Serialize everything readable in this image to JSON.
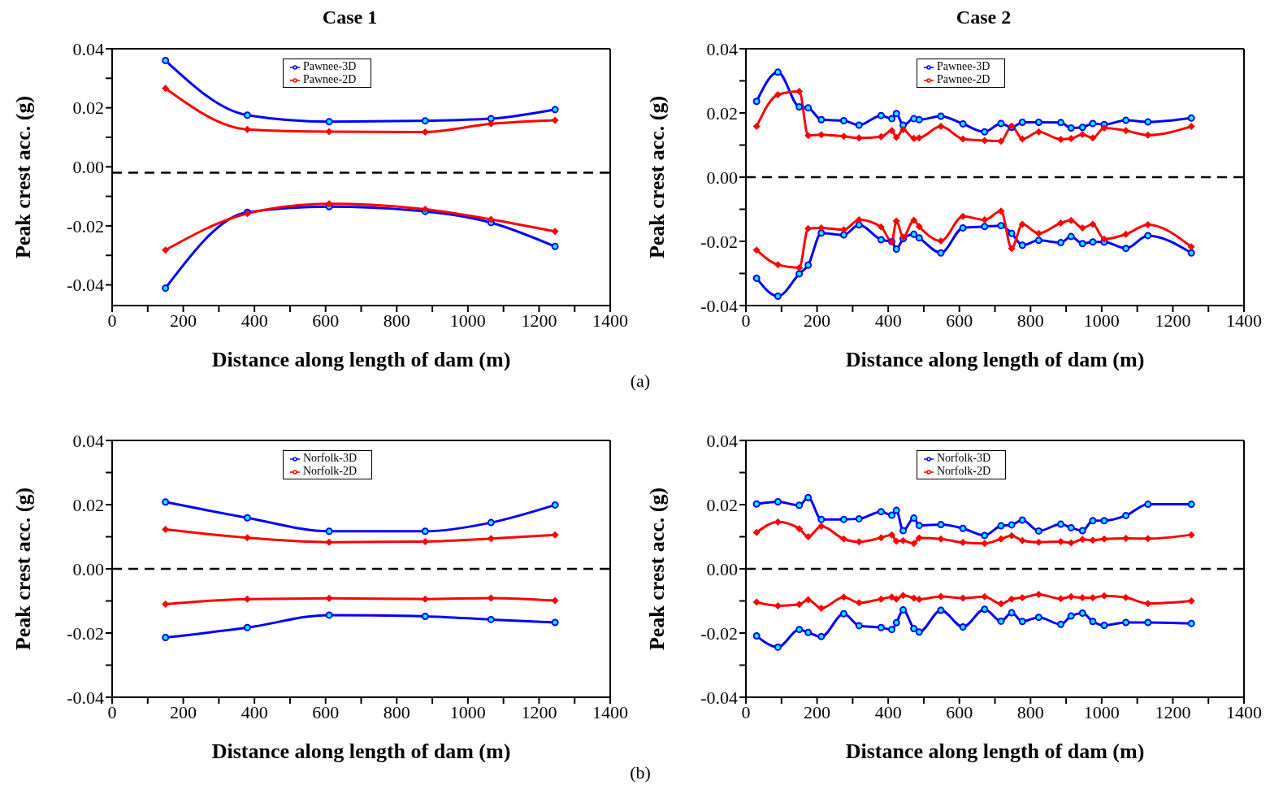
{
  "chart_data": [
    {
      "type": "line",
      "title": "Case 1",
      "xlabel": "Distance along length of dam (m)",
      "ylabel": "Peak crest acc. (g)",
      "annotations": [
        "(a)"
      ],
      "legend": "top",
      "line_style": "solid",
      "xlim": [
        0,
        1400
      ],
      "ylim": [
        -0.047,
        0.04
      ],
      "xticks": [
        0,
        {
          "value": 100,
          "label": null
        },
        200,
        {
          "value": 300,
          "label": null
        },
        400,
        {
          "value": 500,
          "label": null
        },
        600,
        {
          "value": 700,
          "label": null
        },
        800,
        {
          "value": 900,
          "label": null
        },
        1000,
        {
          "value": 1100,
          "label": null
        },
        1200,
        {
          "value": 1300,
          "label": null
        },
        1400
      ],
      "yticks": [
        {
          "value": -0.04,
          "label": "-0.04"
        },
        {
          "value": -0.03,
          "label": null
        },
        {
          "value": -0.02,
          "label": "-0.02"
        },
        {
          "value": -0.01,
          "label": null
        },
        {
          "value": 0,
          "label": "0.00"
        },
        {
          "value": 0.01,
          "label": null
        },
        {
          "value": 0.02,
          "label": "0.02"
        },
        {
          "value": 0.03,
          "label": null
        },
        {
          "value": 0.04,
          "label": "0.04"
        }
      ],
      "ref_lines": [
        {
          "axis": "y",
          "value": -0.002,
          "color": "#000000",
          "line_style": "dashed"
        }
      ],
      "x": [
        150,
        380,
        610,
        880,
        1065,
        1245
      ],
      "series": [
        {
          "name": "Pawnee-3D",
          "color": "#0000ff",
          "marker": "circle",
          "values": [
            0.036,
            0.0175,
            0.0153,
            0.0156,
            0.0163,
            0.0194
          ]
        },
        {
          "name": "Pawnee-2D",
          "color": "#ff0000",
          "marker": "diamond",
          "values": [
            0.0266,
            0.0127,
            0.0119,
            0.0118,
            0.0146,
            0.0158
          ]
        },
        {
          "color": "#0000ff",
          "marker": "circle",
          "values": [
            -0.0411,
            -0.0154,
            -0.0135,
            -0.0151,
            -0.0189,
            -0.027
          ]
        },
        {
          "color": "#ff0000",
          "marker": "diamond",
          "values": [
            -0.0282,
            -0.0158,
            -0.0125,
            -0.0144,
            -0.0178,
            -0.0219
          ]
        }
      ]
    },
    {
      "type": "line",
      "title": "Case 2",
      "xlabel": "Distance along length of dam (m)",
      "ylabel": "Peak crest acc. (g)",
      "legend": "top",
      "line_style": "solid",
      "xlim": [
        0,
        1400
      ],
      "ylim": [
        -0.04,
        0.04
      ],
      "xticks": [
        0,
        {
          "value": 100,
          "label": null
        },
        200,
        {
          "value": 300,
          "label": null
        },
        400,
        {
          "value": 500,
          "label": null
        },
        600,
        {
          "value": 700,
          "label": null
        },
        800,
        {
          "value": 900,
          "label": null
        },
        1000,
        {
          "value": 1100,
          "label": null
        },
        1200,
        {
          "value": 1300,
          "label": null
        },
        1400
      ],
      "yticks": [
        {
          "value": -0.04,
          "label": "-0.04"
        },
        {
          "value": -0.03,
          "label": null
        },
        {
          "value": -0.02,
          "label": "-0.02"
        },
        {
          "value": -0.01,
          "label": null
        },
        {
          "value": 0,
          "label": "0.00"
        },
        {
          "value": 0.01,
          "label": null
        },
        {
          "value": 0.02,
          "label": "0.02"
        },
        {
          "value": 0.03,
          "label": null
        },
        {
          "value": 0.04,
          "label": "0.04"
        }
      ],
      "ref_lines": [
        {
          "axis": "y",
          "value": 0,
          "color": "#000000",
          "line_style": "dashed"
        }
      ],
      "x": [
        30,
        90,
        150,
        175,
        212,
        275,
        318,
        380,
        410,
        423,
        442,
        472,
        487,
        548,
        610,
        671,
        717,
        747,
        777,
        823,
        885,
        914,
        946,
        975,
        1007,
        1068,
        1130,
        1252
      ],
      "series": [
        {
          "name": "Pawnee-3D",
          "color": "#0000ff",
          "marker": "circle",
          "values": [
            0.0236,
            0.0327,
            0.0219,
            0.0216,
            0.0179,
            0.0176,
            0.0162,
            0.0192,
            0.0182,
            0.0198,
            0.0162,
            0.0182,
            0.0179,
            0.019,
            0.0166,
            0.0141,
            0.0167,
            0.0155,
            0.0171,
            0.0171,
            0.017,
            0.0153,
            0.0155,
            0.0167,
            0.0164,
            0.0177,
            0.0172,
            0.0184
          ]
        },
        {
          "name": "Pawnee-2D",
          "color": "#ff0000",
          "marker": "diamond",
          "values": [
            0.0158,
            0.0257,
            0.0267,
            0.013,
            0.0132,
            0.0127,
            0.0122,
            0.0126,
            0.0145,
            0.0124,
            0.0148,
            0.0121,
            0.0122,
            0.0158,
            0.0119,
            0.0114,
            0.0112,
            0.0159,
            0.0119,
            0.0141,
            0.0118,
            0.012,
            0.0133,
            0.0122,
            0.0153,
            0.0145,
            0.0131,
            0.0158
          ]
        },
        {
          "color": "#0000ff",
          "marker": "circle",
          "values": [
            -0.0315,
            -0.0371,
            -0.0301,
            -0.0274,
            -0.0174,
            -0.018,
            -0.0149,
            -0.0195,
            -0.0201,
            -0.0224,
            -0.0192,
            -0.0178,
            -0.0189,
            -0.0236,
            -0.0158,
            -0.0154,
            -0.0151,
            -0.0175,
            -0.0212,
            -0.0197,
            -0.0204,
            -0.0185,
            -0.0207,
            -0.0202,
            -0.0202,
            -0.0222,
            -0.0182,
            -0.0236
          ]
        },
        {
          "color": "#ff0000",
          "marker": "diamond",
          "values": [
            -0.0227,
            -0.0273,
            -0.0282,
            -0.016,
            -0.0158,
            -0.0164,
            -0.0133,
            -0.0155,
            -0.0201,
            -0.0137,
            -0.0187,
            -0.0134,
            -0.0154,
            -0.0199,
            -0.0122,
            -0.0133,
            -0.0106,
            -0.0222,
            -0.0147,
            -0.0175,
            -0.0143,
            -0.0135,
            -0.0158,
            -0.0147,
            -0.0193,
            -0.0178,
            -0.0148,
            -0.0217
          ]
        }
      ]
    },
    {
      "type": "line",
      "xlabel": "Distance along length of dam (m)",
      "ylabel": "Peak crest acc. (g)",
      "annotations": [
        "(b)"
      ],
      "legend": "top",
      "line_style": "solid",
      "xlim": [
        0,
        1400
      ],
      "ylim": [
        -0.04,
        0.04
      ],
      "xticks": [
        0,
        {
          "value": 100,
          "label": null
        },
        200,
        {
          "value": 300,
          "label": null
        },
        400,
        {
          "value": 500,
          "label": null
        },
        600,
        {
          "value": 700,
          "label": null
        },
        800,
        {
          "value": 900,
          "label": null
        },
        1000,
        {
          "value": 1100,
          "label": null
        },
        1200,
        {
          "value": 1300,
          "label": null
        },
        1400
      ],
      "yticks": [
        {
          "value": -0.04,
          "label": "-0.04"
        },
        {
          "value": -0.03,
          "label": null
        },
        {
          "value": -0.02,
          "label": "-0.02"
        },
        {
          "value": -0.01,
          "label": null
        },
        {
          "value": 0,
          "label": "0.00"
        },
        {
          "value": 0.01,
          "label": null
        },
        {
          "value": 0.02,
          "label": "0.02"
        },
        {
          "value": 0.03,
          "label": null
        },
        {
          "value": 0.04,
          "label": "0.04"
        }
      ],
      "ref_lines": [
        {
          "axis": "y",
          "value": 0,
          "color": "#000000",
          "line_style": "dashed"
        }
      ],
      "x": [
        150,
        380,
        610,
        880,
        1065,
        1245
      ],
      "series": [
        {
          "name": "Norfolk-3D",
          "color": "#0000ff",
          "marker": "circle",
          "values": [
            0.0208,
            0.0159,
            0.0117,
            0.0117,
            0.0144,
            0.0199
          ]
        },
        {
          "name": "Norfolk-2D",
          "color": "#ff0000",
          "marker": "diamond",
          "values": [
            0.0123,
            0.0097,
            0.0083,
            0.0085,
            0.0094,
            0.0106
          ]
        },
        {
          "color": "#ff0000",
          "marker": "diamond",
          "values": [
            -0.011,
            -0.0094,
            -0.0092,
            -0.0094,
            -0.0091,
            -0.0099
          ]
        },
        {
          "color": "#0000ff",
          "marker": "circle",
          "values": [
            -0.0214,
            -0.0183,
            -0.0144,
            -0.0148,
            -0.0158,
            -0.0167
          ]
        }
      ]
    },
    {
      "type": "line",
      "xlabel": "Distance along length of dam (m)",
      "ylabel": "Peak crest acc. (g)",
      "legend": "top",
      "line_style": "solid",
      "xlim": [
        0,
        1400
      ],
      "ylim": [
        -0.04,
        0.04
      ],
      "xticks": [
        0,
        {
          "value": 100,
          "label": null
        },
        200,
        {
          "value": 300,
          "label": null
        },
        400,
        {
          "value": 500,
          "label": null
        },
        600,
        {
          "value": 700,
          "label": null
        },
        800,
        {
          "value": 900,
          "label": null
        },
        1000,
        {
          "value": 1100,
          "label": null
        },
        1200,
        {
          "value": 1300,
          "label": null
        },
        1400
      ],
      "yticks": [
        {
          "value": -0.04,
          "label": "-0.04"
        },
        {
          "value": -0.03,
          "label": null
        },
        {
          "value": -0.02,
          "label": "-0.02"
        },
        {
          "value": -0.01,
          "label": null
        },
        {
          "value": 0,
          "label": "0.00"
        },
        {
          "value": 0.01,
          "label": null
        },
        {
          "value": 0.02,
          "label": "0.02"
        },
        {
          "value": 0.03,
          "label": null
        },
        {
          "value": 0.04,
          "label": "0.04"
        }
      ],
      "ref_lines": [
        {
          "axis": "y",
          "value": 0,
          "color": "#000000",
          "line_style": "dashed"
        }
      ],
      "x": [
        30,
        90,
        150,
        175,
        212,
        275,
        318,
        380,
        410,
        423,
        442,
        472,
        487,
        548,
        610,
        671,
        717,
        747,
        777,
        823,
        885,
        914,
        946,
        975,
        1007,
        1068,
        1130,
        1252
      ],
      "series": [
        {
          "name": "Norfolk-3D",
          "color": "#0000ff",
          "marker": "circle",
          "values": [
            0.0202,
            0.0209,
            0.0198,
            0.0222,
            0.0154,
            0.0154,
            0.0156,
            0.0178,
            0.0167,
            0.0182,
            0.0119,
            0.0158,
            0.0135,
            0.0138,
            0.0126,
            0.0104,
            0.0134,
            0.0137,
            0.0152,
            0.0118,
            0.0139,
            0.0128,
            0.0119,
            0.015,
            0.015,
            0.0166,
            0.0201,
            0.0201
          ]
        },
        {
          "name": "Norfolk-2D",
          "color": "#ff0000",
          "marker": "diamond",
          "values": [
            0.0113,
            0.0146,
            0.0125,
            0.01,
            0.0133,
            0.0093,
            0.0084,
            0.0097,
            0.0106,
            0.0086,
            0.0088,
            0.0079,
            0.0096,
            0.0093,
            0.0082,
            0.0079,
            0.0093,
            0.0103,
            0.0088,
            0.0083,
            0.0085,
            0.0081,
            0.0092,
            0.0089,
            0.0093,
            0.0095,
            0.0094,
            0.0106
          ]
        },
        {
          "color": "#ff0000",
          "marker": "diamond",
          "values": [
            -0.0104,
            -0.0115,
            -0.0111,
            -0.0096,
            -0.0123,
            -0.0088,
            -0.0106,
            -0.0094,
            -0.0088,
            -0.0094,
            -0.0083,
            -0.0091,
            -0.0095,
            -0.0086,
            -0.0091,
            -0.0087,
            -0.0109,
            -0.0094,
            -0.009,
            -0.008,
            -0.0093,
            -0.0087,
            -0.009,
            -0.009,
            -0.0084,
            -0.0089,
            -0.0108,
            -0.01
          ]
        },
        {
          "color": "#0000ff",
          "marker": "circle",
          "values": [
            -0.0209,
            -0.0244,
            -0.0189,
            -0.0198,
            -0.0211,
            -0.014,
            -0.0177,
            -0.0183,
            -0.0189,
            -0.0168,
            -0.0128,
            -0.0186,
            -0.0197,
            -0.0129,
            -0.0181,
            -0.0126,
            -0.0163,
            -0.0137,
            -0.0164,
            -0.0151,
            -0.0173,
            -0.0147,
            -0.0138,
            -0.0164,
            -0.0176,
            -0.0167,
            -0.0167,
            -0.017
          ]
        }
      ]
    }
  ]
}
